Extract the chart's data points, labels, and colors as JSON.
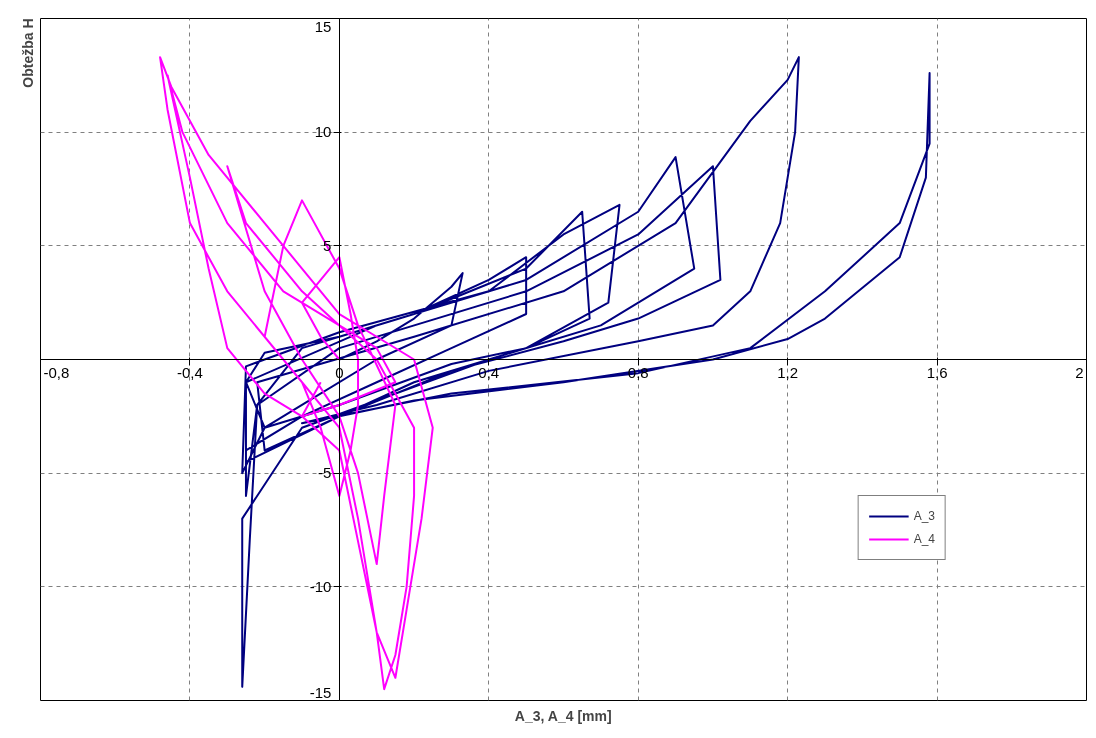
{
  "chart_data": {
    "type": "line",
    "xlabel": "A_3, A_4 [mm]",
    "ylabel": "Obtežba H",
    "xlim": [
      -0.8,
      2
    ],
    "ylim": [
      -15,
      15
    ],
    "xticks": [
      {
        "value": -0.8,
        "label": "-0,8"
      },
      {
        "value": -0.4,
        "label": "-0,4"
      },
      0,
      {
        "value": 0.4,
        "label": "0,4"
      },
      {
        "value": 0.8,
        "label": "0,8"
      },
      {
        "value": 1.2,
        "label": "1,2"
      },
      {
        "value": 1.6,
        "label": "1,6"
      },
      2
    ],
    "yticks": [
      -15,
      -10,
      -5,
      {
        "value": 0,
        "label": null
      },
      5,
      10,
      15
    ],
    "grid": true,
    "legend": "bottom right",
    "line_style": "solid",
    "marker": "none",
    "series": [
      {
        "name": "A_3",
        "color": "#000080",
        "x": [
          0,
          0.1,
          0.2,
          0.3,
          0.33,
          0.3,
          0.1,
          -0.1,
          -0.2,
          -0.25,
          -0.2,
          0,
          0.2,
          0.4,
          0.5,
          0.5,
          0.3,
          0.1,
          -0.1,
          -0.25,
          -0.25,
          -0.22,
          -0.1,
          0.2,
          0.5,
          0.65,
          0.67,
          0.5,
          0.3,
          0,
          -0.2,
          -0.26,
          -0.25,
          0,
          0.4,
          0.6,
          0.75,
          0.72,
          0.5,
          0.2,
          0,
          -0.25,
          -0.25,
          0.1,
          0.5,
          0.8,
          0.9,
          0.95,
          0.7,
          0.4,
          0.2,
          -0.1,
          -0.26,
          -0.26,
          -0.24,
          -0.22,
          0,
          0.5,
          0.8,
          1.0,
          1.02,
          0.8,
          0.6,
          0.3,
          0,
          -0.2,
          -0.22,
          0.2,
          0.6,
          0.9,
          1.1,
          1.2,
          1.23,
          1.22,
          1.18,
          1.1,
          1.0,
          0.8,
          0.4,
          0.1,
          -0.1,
          0.3,
          0.8,
          1.1,
          1.3,
          1.5,
          1.58,
          1.58,
          1.57,
          1.5,
          1.3,
          1.2,
          1.0,
          0.6,
          0.2,
          0
        ],
        "values": [
          0,
          0.8,
          1.8,
          3.2,
          3.8,
          1.5,
          0,
          -2,
          -3,
          -1,
          0.3,
          1,
          2,
          3.5,
          4.5,
          2,
          0.5,
          -1,
          -2.5,
          -4,
          -6,
          -2,
          0.5,
          2,
          4,
          6.5,
          1.8,
          0.5,
          -0.2,
          -2,
          -3,
          -5,
          -0.3,
          1.2,
          3,
          5.5,
          6.8,
          2.5,
          0.5,
          -1,
          -2.5,
          -4.5,
          -1,
          1.5,
          3.5,
          6.5,
          8.9,
          4,
          1.5,
          0,
          -1.2,
          -3,
          -7,
          -14.4,
          -8,
          -2,
          0.5,
          3,
          5.5,
          8.5,
          3.5,
          1.8,
          0.8,
          -0.5,
          -2.5,
          -4,
          -1,
          1,
          3,
          6,
          10.5,
          12.3,
          13.3,
          10,
          6,
          3,
          1.5,
          0.8,
          -0.5,
          -2,
          -2.8,
          -1.5,
          -0.6,
          0.5,
          3,
          6,
          9.5,
          12.6,
          8,
          4.5,
          1.8,
          0.9,
          0,
          -1,
          -1.8,
          -2.5
        ]
      },
      {
        "name": "A_4",
        "color": "#ff00ff",
        "x": [
          0,
          -0.05,
          -0.1,
          0,
          0.03,
          0.05,
          0.05,
          0.03,
          0,
          -0.05,
          -0.1,
          -0.2,
          -0.15,
          -0.1,
          0,
          0.05,
          0.15,
          0.12,
          0.1,
          0.05,
          0,
          -0.1,
          -0.2,
          -0.3,
          -0.25,
          -0.1,
          0,
          0.1,
          0.2,
          0.2,
          0.18,
          0.15,
          0.12,
          0.1,
          0.05,
          0,
          -0.15,
          -0.3,
          -0.4,
          -0.46,
          -0.48,
          -0.45,
          -0.35,
          -0.2,
          -0.1,
          0,
          0.1,
          0.2,
          0.25,
          0.22,
          0.18,
          0.15,
          0.1,
          0.05,
          0,
          -0.1,
          -0.2,
          -0.3,
          -0.35,
          -0.4,
          -0.46,
          -0.42,
          -0.3,
          -0.15,
          0,
          0.1,
          0.15,
          0,
          -0.1,
          -0.05
        ],
        "values": [
          0,
          1,
          2.5,
          4.5,
          2,
          0,
          -2,
          -4,
          -6,
          -3,
          -1,
          1,
          5,
          7,
          4,
          1.5,
          -2,
          -6,
          -9,
          -5,
          -2.5,
          0,
          3,
          8.5,
          6,
          3,
          1.5,
          0,
          -3,
          -6,
          -10,
          -13,
          -14.5,
          -12,
          -7,
          -3,
          0,
          3,
          6,
          11,
          13.3,
          12,
          9,
          6,
          4,
          2,
          1,
          0,
          -3,
          -7,
          -11,
          -14,
          -12,
          -8,
          -4,
          -2.5,
          -1.5,
          0.5,
          4,
          8,
          12.5,
          10,
          6,
          3,
          1.5,
          0.5,
          -1,
          -2,
          -2.5,
          -1
        ]
      }
    ]
  }
}
